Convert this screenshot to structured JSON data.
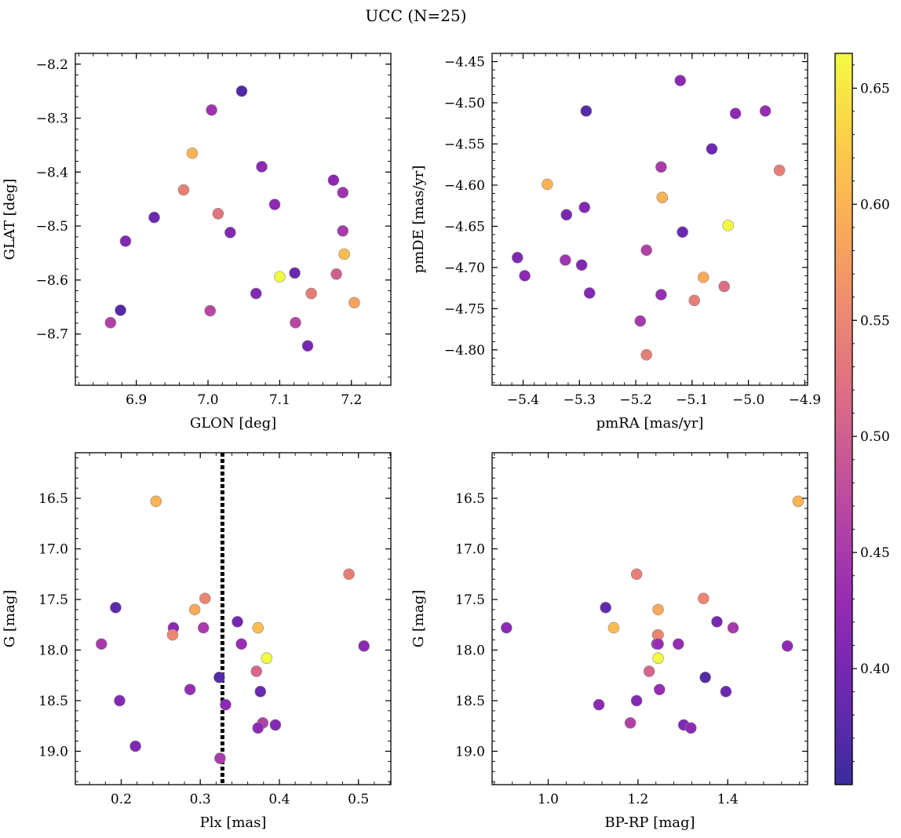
{
  "title": "UCC (N=25)",
  "colorbar": {
    "range": [
      0.35,
      0.665
    ],
    "ticks": [
      0.4,
      0.45,
      0.5,
      0.55,
      0.6,
      0.65
    ],
    "tick_labels": [
      "0.40",
      "0.45",
      "0.50",
      "0.55",
      "0.60",
      "0.65"
    ],
    "colormap": "plasma"
  },
  "chart_data": [
    {
      "type": "scatter",
      "xlabel": "GLON [deg]",
      "ylabel": "GLAT [deg]",
      "xlim": [
        6.815,
        7.255
      ],
      "ylim": [
        -8.795,
        -8.18
      ],
      "xticks": [
        6.9,
        7.0,
        7.1,
        7.2
      ],
      "xtick_labels": [
        "6.9",
        "7.0",
        "7.1",
        "7.2"
      ],
      "yticks": [
        -8.2,
        -8.3,
        -8.4,
        -8.5,
        -8.6,
        -8.7
      ],
      "ytick_labels": [
        "−8.2",
        "−8.3",
        "−8.4",
        "−8.5",
        "−8.6",
        "−8.7"
      ],
      "x": [
        7.047,
        7.005,
        6.978,
        7.075,
        6.966,
        7.175,
        7.188,
        7.093,
        6.925,
        7.014,
        7.031,
        6.885,
        7.188,
        7.19,
        7.1,
        7.121,
        7.179,
        7.067,
        7.144,
        7.204,
        6.878,
        7.003,
        6.864,
        7.122,
        7.139
      ],
      "y": [
        -8.25,
        -8.285,
        -8.365,
        -8.39,
        -8.433,
        -8.415,
        -8.438,
        -8.46,
        -8.484,
        -8.477,
        -8.512,
        -8.528,
        -8.509,
        -8.552,
        -8.594,
        -8.587,
        -8.589,
        -8.625,
        -8.625,
        -8.642,
        -8.656,
        -8.657,
        -8.679,
        -8.679,
        -8.722
      ],
      "c": [
        0.37,
        0.44,
        0.6,
        0.42,
        0.54,
        0.42,
        0.44,
        0.42,
        0.39,
        0.53,
        0.41,
        0.41,
        0.45,
        0.61,
        0.665,
        0.39,
        0.5,
        0.41,
        0.54,
        0.58,
        0.37,
        0.47,
        0.46,
        0.47,
        0.4
      ]
    },
    {
      "type": "scatter",
      "xlabel": "pmRA [mas/yr]",
      "ylabel": "pmDE [mas/yr]",
      "xlim": [
        -5.455,
        -4.895
      ],
      "ylim": [
        -4.843,
        -4.44
      ],
      "xticks": [
        -5.4,
        -5.3,
        -5.2,
        -5.1,
        -5.0,
        -4.9
      ],
      "xtick_labels": [
        "−5.4",
        "−5.3",
        "−5.2",
        "−5.1",
        "−5.0",
        "−4.9"
      ],
      "yticks": [
        -4.45,
        -4.5,
        -4.55,
        -4.6,
        -4.65,
        -4.7,
        -4.75,
        -4.8
      ],
      "ytick_labels": [
        "−4.45",
        "−4.50",
        "−4.55",
        "−4.60",
        "−4.65",
        "−4.70",
        "−4.75",
        "−4.80"
      ],
      "x": [
        -5.121,
        -5.288,
        -4.97,
        -5.023,
        -5.065,
        -5.155,
        -4.945,
        -5.357,
        -5.153,
        -5.291,
        -5.323,
        -5.117,
        -5.036,
        -5.181,
        -5.41,
        -5.325,
        -5.296,
        -5.397,
        -5.08,
        -5.282,
        -5.155,
        -5.096,
        -5.043,
        -5.192,
        -5.181
      ],
      "y": [
        -4.473,
        -4.51,
        -4.51,
        -4.513,
        -4.556,
        -4.578,
        -4.582,
        -4.599,
        -4.615,
        -4.627,
        -4.636,
        -4.657,
        -4.649,
        -4.679,
        -4.688,
        -4.691,
        -4.697,
        -4.71,
        -4.712,
        -4.731,
        -4.733,
        -4.74,
        -4.723,
        -4.765,
        -4.806
      ],
      "c": [
        0.42,
        0.37,
        0.43,
        0.42,
        0.39,
        0.45,
        0.54,
        0.6,
        0.6,
        0.41,
        0.4,
        0.39,
        0.665,
        0.46,
        0.41,
        0.44,
        0.41,
        0.42,
        0.59,
        0.41,
        0.43,
        0.54,
        0.52,
        0.45,
        0.54
      ]
    },
    {
      "type": "scatter",
      "xlabel": "Plx [mas]",
      "ylabel": "G [mag]",
      "ylim_inverted": true,
      "xlim": [
        0.142,
        0.541
      ],
      "ylim": [
        19.33,
        16.05
      ],
      "xticks": [
        0.2,
        0.3,
        0.4,
        0.5
      ],
      "xtick_labels": [
        "0.2",
        "0.3",
        "0.4",
        "0.5"
      ],
      "yticks": [
        16.5,
        17.0,
        17.5,
        18.0,
        18.5,
        19.0
      ],
      "ytick_labels": [
        "16.5",
        "17.0",
        "17.5",
        "18.0",
        "18.5",
        "19.0"
      ],
      "vline_x": 0.328,
      "x": [
        0.244,
        0.488,
        0.306,
        0.193,
        0.293,
        0.266,
        0.304,
        0.347,
        0.373,
        0.265,
        0.175,
        0.352,
        0.507,
        0.384,
        0.371,
        0.324,
        0.287,
        0.376,
        0.198,
        0.332,
        0.379,
        0.218,
        0.395,
        0.373,
        0.325
      ],
      "y": [
        16.53,
        17.25,
        17.49,
        17.58,
        17.6,
        17.78,
        17.78,
        17.72,
        17.78,
        17.85,
        17.94,
        17.94,
        17.96,
        18.08,
        18.21,
        18.27,
        18.39,
        18.41,
        18.5,
        18.54,
        18.72,
        18.95,
        18.74,
        18.77,
        19.07
      ],
      "c": [
        0.6,
        0.54,
        0.55,
        0.38,
        0.59,
        0.42,
        0.45,
        0.4,
        0.61,
        0.55,
        0.45,
        0.43,
        0.42,
        0.665,
        0.51,
        0.37,
        0.43,
        0.39,
        0.41,
        0.42,
        0.46,
        0.41,
        0.41,
        0.42,
        0.45
      ]
    },
    {
      "type": "scatter",
      "xlabel": "BP-RP [mag]",
      "ylabel": "G [mag]",
      "ylim_inverted": true,
      "xlim": [
        0.875,
        1.578
      ],
      "ylim": [
        19.33,
        16.05
      ],
      "xticks": [
        1.0,
        1.2,
        1.4
      ],
      "xtick_labels": [
        "1.0",
        "1.2",
        "1.4"
      ],
      "yticks": [
        16.5,
        17.0,
        17.5,
        18.0,
        18.5,
        19.0
      ],
      "ytick_labels": [
        "16.5",
        "17.0",
        "17.5",
        "18.0",
        "18.5",
        "19.0"
      ],
      "x": [
        1.557,
        1.197,
        1.346,
        1.128,
        1.245,
        0.907,
        1.146,
        1.376,
        1.412,
        1.244,
        1.242,
        1.29,
        1.533,
        1.245,
        1.225,
        1.35,
        1.248,
        1.396,
        1.197,
        1.113,
        1.183,
        1.302,
        1.318,
        1.245,
        1.245
      ],
      "y": [
        16.53,
        17.25,
        17.49,
        17.58,
        17.6,
        17.78,
        17.78,
        17.72,
        17.78,
        17.85,
        17.94,
        17.94,
        17.96,
        18.08,
        18.21,
        18.27,
        18.39,
        18.41,
        18.5,
        18.54,
        18.72,
        18.74,
        18.77,
        17.85,
        17.94
      ],
      "c": [
        0.6,
        0.54,
        0.55,
        0.38,
        0.59,
        0.42,
        0.61,
        0.4,
        0.45,
        0.55,
        0.43,
        0.43,
        0.42,
        0.665,
        0.51,
        0.37,
        0.43,
        0.39,
        0.41,
        0.42,
        0.46,
        0.41,
        0.42,
        0.55,
        0.43
      ]
    }
  ]
}
